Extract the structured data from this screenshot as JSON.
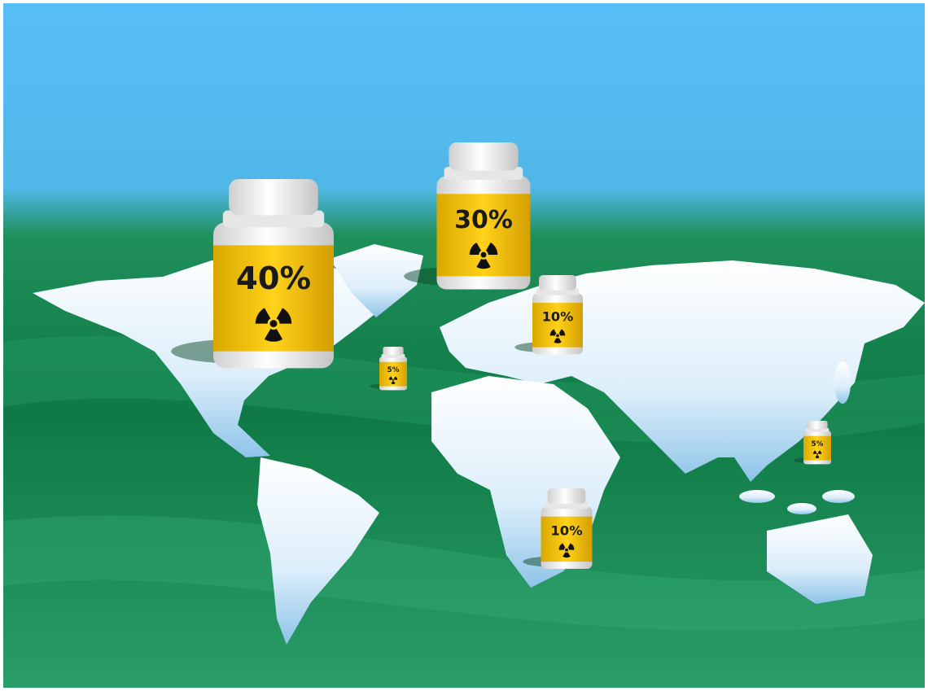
{
  "bottles": [
    {
      "label": "40%"
    },
    {
      "label": "30%"
    },
    {
      "label": "10%"
    },
    {
      "label": "5%"
    },
    {
      "label": "5%"
    },
    {
      "label": "10%"
    }
  ]
}
